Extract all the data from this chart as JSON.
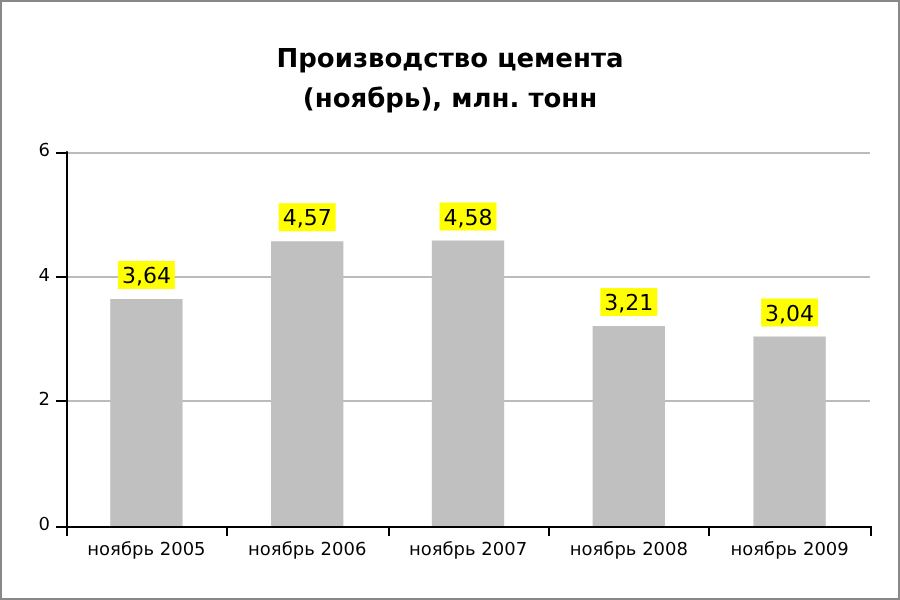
{
  "chart_data": {
    "type": "bar",
    "title": "Производство цемента\n(ноябрь), млн. тонн",
    "categories": [
      "ноябрь 2005",
      "ноябрь 2006",
      "ноябрь 2007",
      "ноябрь 2008",
      "ноябрь 2009"
    ],
    "values": [
      3.64,
      4.57,
      4.58,
      3.21,
      3.04
    ],
    "value_labels": [
      "3,64",
      "4,57",
      "4,58",
      "3,21",
      "3,04"
    ],
    "color": "#c0c0c0",
    "ylim": [
      0,
      6
    ],
    "yticks": [
      0,
      2,
      4,
      6
    ],
    "grid": "y"
  }
}
